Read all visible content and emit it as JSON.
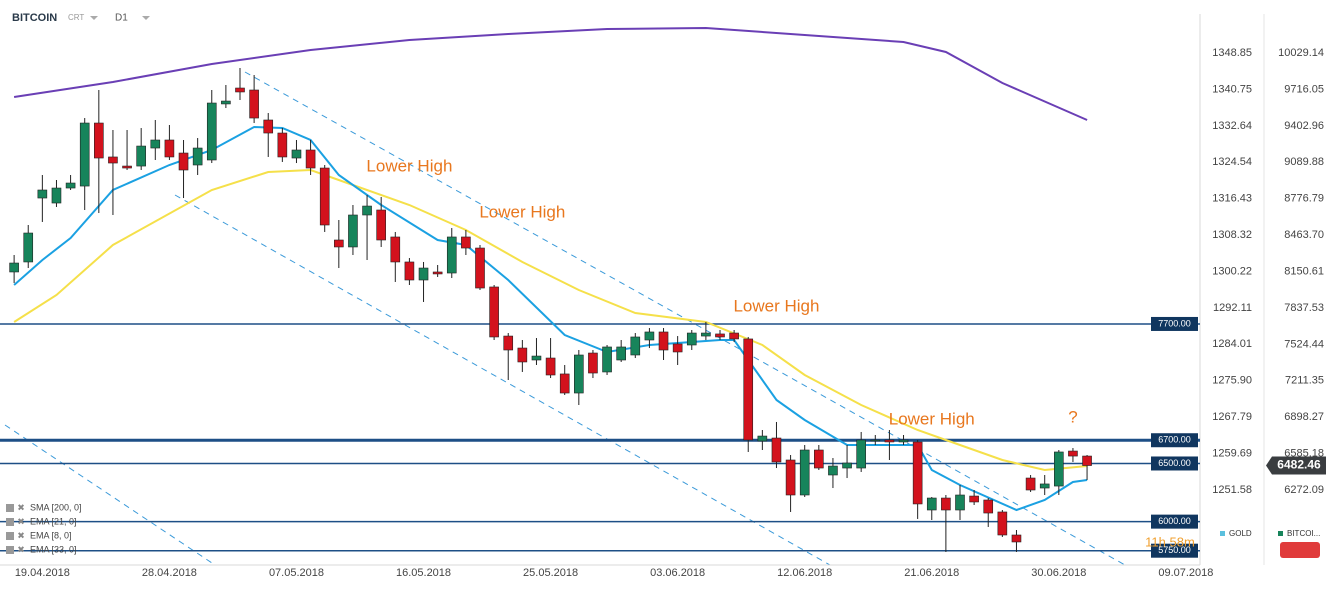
{
  "chart_data": {
    "type": "candlestick",
    "header": {
      "symbol": "BITCOIN",
      "source": "CRT",
      "timeframe": "D1"
    },
    "xlim": [
      "16.04.2018",
      "10.07.2018"
    ],
    "xticks": [
      "19.04.2018",
      "28.04.2018",
      "07.05.2018",
      "16.05.2018",
      "25.05.2018",
      "03.06.2018",
      "12.06.2018",
      "21.06.2018",
      "30.06.2018",
      "09.07.2018"
    ],
    "ylim": [
      5627,
      10486
    ],
    "yticks": [
      10029.14,
      9716.05,
      9402.96,
      9089.88,
      8776.79,
      {
        "value": 8463.7,
        "label": "8463.70"
      },
      8150.61,
      7837.53,
      7524.44,
      7211.35,
      6898.27,
      6585.18,
      6272.09
    ],
    "y2lim": [
      1234.85,
      1360.67
    ],
    "y2ticks": [
      1348.85,
      1340.75,
      1332.64,
      1324.54,
      1316.43,
      1308.32,
      1300.22,
      1292.11,
      1284.01,
      {
        "value": 1275.9,
        "label": "1275.90"
      },
      1267.79,
      1259.69,
      1251.58
    ],
    "up_color": "#17845b",
    "down_color": "#d3121d",
    "candles": {
      "x": [
        "17.04.2018",
        "18.04.2018",
        "19.04.2018",
        "20.04.2018",
        "21.04.2018",
        "22.04.2018",
        "23.04.2018",
        "24.04.2018",
        "25.04.2018",
        "26.04.2018",
        "27.04.2018",
        "28.04.2018",
        "29.04.2018",
        "30.04.2018",
        "01.05.2018",
        "02.05.2018",
        "03.05.2018",
        "04.05.2018",
        "05.05.2018",
        "06.05.2018",
        "07.05.2018",
        "08.05.2018",
        "09.05.2018",
        "10.05.2018",
        "11.05.2018",
        "12.05.2018",
        "13.05.2018",
        "14.05.2018",
        "15.05.2018",
        "16.05.2018",
        "17.05.2018",
        "18.05.2018",
        "19.05.2018",
        "20.05.2018",
        "21.05.2018",
        "22.05.2018",
        "23.05.2018",
        "24.05.2018",
        "25.05.2018",
        "26.05.2018",
        "27.05.2018",
        "28.05.2018",
        "29.05.2018",
        "30.05.2018",
        "31.05.2018",
        "01.06.2018",
        "02.06.2018",
        "03.06.2018",
        "04.06.2018",
        "05.06.2018",
        "06.06.2018",
        "07.06.2018",
        "08.06.2018",
        "09.06.2018",
        "10.06.2018",
        "11.06.2018",
        "12.06.2018",
        "13.06.2018",
        "14.06.2018",
        "15.06.2018",
        "16.06.2018",
        "17.06.2018",
        "18.06.2018",
        "19.06.2018",
        "20.06.2018",
        "21.06.2018",
        "22.06.2018",
        "23.06.2018",
        "24.06.2018",
        "25.06.2018",
        "26.06.2018",
        "27.06.2018",
        "28.06.2018",
        "29.06.2018",
        "30.06.2018",
        "01.07.2018",
        "02.07.2018"
      ],
      "open": [
        8147,
        8233,
        8783,
        8740,
        8869,
        8886,
        9428,
        9136,
        9058,
        9058,
        9213,
        9282,
        9170,
        9067,
        9110,
        9592,
        9729,
        9712,
        9454,
        9342,
        9127,
        9196,
        9041,
        8422,
        8362,
        8637,
        8680,
        8448,
        8233,
        8078,
        8147,
        8138,
        8448,
        8353,
        8018,
        7596,
        7493,
        7390,
        7407,
        7270,
        7106,
        7450,
        7287,
        7390,
        7433,
        7562,
        7631,
        7528,
        7519,
        7596,
        7614,
        7622,
        7571,
        6693,
        6719,
        6530,
        6229,
        6616,
        6401,
        6461,
        6461,
        6693,
        6702,
        6685,
        6685,
        6100,
        6203,
        6100,
        6220,
        6186,
        6083,
        5885,
        6375,
        6289,
        6306,
        6607,
        6564
      ],
      "high": [
        8293,
        8551,
        8981,
        8938,
        8981,
        9471,
        9712,
        9368,
        9368,
        9385,
        9454,
        9411,
        9282,
        9299,
        9712,
        9755,
        9901,
        9841,
        9514,
        9385,
        9282,
        9282,
        9067,
        8594,
        8723,
        8809,
        8792,
        8491,
        8267,
        8233,
        8207,
        8525,
        8508,
        8379,
        8035,
        7622,
        7562,
        7579,
        7579,
        7347,
        7476,
        7476,
        7519,
        7562,
        7622,
        7665,
        7665,
        7596,
        7648,
        7717,
        7648,
        7648,
        7588,
        6788,
        6857,
        6573,
        6659,
        6659,
        6547,
        6659,
        6771,
        6745,
        6788,
        6745,
        6702,
        6212,
        6229,
        6315,
        6272,
        6203,
        6100,
        5928,
        6401,
        6401,
        6616,
        6633,
        6573
      ],
      "low": [
        8052,
        8181,
        8577,
        8706,
        8852,
        8680,
        8654,
        8637,
        9024,
        9024,
        9110,
        9110,
        8783,
        8981,
        9084,
        9557,
        9626,
        9428,
        9136,
        9093,
        9084,
        8981,
        8491,
        8181,
        8293,
        8250,
        8362,
        8061,
        8035,
        7889,
        8104,
        8095,
        8293,
        7992,
        7562,
        7218,
        7287,
        7347,
        7235,
        7089,
        7003,
        7235,
        7261,
        7373,
        7407,
        7493,
        7390,
        7347,
        7476,
        7562,
        7562,
        7545,
        6599,
        6616,
        6461,
        6083,
        6212,
        6444,
        6289,
        6375,
        6427,
        6659,
        6530,
        6659,
        6023,
        6014,
        5739,
        6014,
        6143,
        5954,
        5868,
        5739,
        6255,
        6229,
        6229,
        6513,
        6358
      ],
      "close": [
        8224,
        8482,
        8852,
        8869,
        8912,
        9428,
        9127,
        9084,
        9041,
        9230,
        9282,
        9136,
        9024,
        9213,
        9600,
        9617,
        9695,
        9471,
        9342,
        9136,
        9196,
        9041,
        8551,
        8362,
        8637,
        8714,
        8422,
        8233,
        8078,
        8181,
        8130,
        8448,
        8353,
        8009,
        7588,
        7476,
        7373,
        7424,
        7261,
        7106,
        7433,
        7278,
        7502,
        7502,
        7588,
        7631,
        7476,
        7459,
        7622,
        7622,
        7588,
        7571,
        6702,
        6736,
        6513,
        6229,
        6616,
        6461,
        6478,
        6504,
        6702,
        6702,
        6685,
        6702,
        6152,
        6203,
        6100,
        6229,
        6169,
        6074,
        5885,
        5825,
        6272,
        6324,
        6599,
        6564,
        6482.46
      ]
    },
    "indicators": [
      {
        "name": "SMA [200, 0]",
        "color": "#6a3fb5",
        "x": [
          "17.04.2018",
          "24.04.2018",
          "01.05.2018",
          "08.05.2018",
          "15.05.2018",
          "22.05.2018",
          "29.05.2018",
          "05.06.2018",
          "12.06.2018",
          "19.06.2018",
          "22.06.2018",
          "26.06.2018",
          "02.07.2018"
        ],
        "values": [
          9652,
          9781,
          9936,
          10056,
          10142,
          10194,
          10237,
          10245,
          10185,
          10125,
          10039,
          9772,
          9454
        ]
      },
      {
        "name": "EMA [21, 0]",
        "color": "#f5e04a",
        "x": [
          "17.04.2018",
          "20.04.2018",
          "24.04.2018",
          "01.05.2018",
          "05.05.2018",
          "08.05.2018",
          "11.05.2018",
          "15.05.2018",
          "19.05.2018",
          "23.05.2018",
          "27.05.2018",
          "31.05.2018",
          "05.06.2018",
          "09.06.2018",
          "12.06.2018",
          "16.06.2018",
          "20.06.2018",
          "23.06.2018",
          "26.06.2018",
          "29.06.2018",
          "02.07.2018"
        ],
        "values": [
          7717,
          7949,
          8379,
          8852,
          9007,
          9024,
          8895,
          8723,
          8508,
          8233,
          7992,
          7794,
          7717,
          7519,
          7261,
          7003,
          6788,
          6659,
          6530,
          6444,
          6478
        ]
      },
      {
        "name": "EMA [8, 0]",
        "color": "#1ba1e2",
        "x": [
          "17.04.2018",
          "19.04.2018",
          "21.04.2018",
          "24.04.2018",
          "28.04.2018",
          "01.05.2018",
          "04.05.2018",
          "06.05.2018",
          "08.05.2018",
          "10.05.2018",
          "13.05.2018",
          "17.05.2018",
          "19.05.2018",
          "22.05.2018",
          "26.05.2018",
          "29.05.2018",
          "01.06.2018",
          "06.06.2018",
          "07.06.2018",
          "10.06.2018",
          "12.06.2018",
          "15.06.2018",
          "20.06.2018",
          "21.06.2018",
          "23.06.2018",
          "27.06.2018",
          "29.06.2018",
          "01.07.2018",
          "02.07.2018"
        ],
        "values": [
          8035,
          8250,
          8439,
          8852,
          9067,
          9196,
          9394,
          9385,
          9282,
          8981,
          8723,
          8422,
          8379,
          8078,
          7605,
          7459,
          7519,
          7562,
          7562,
          7046,
          6874,
          6659,
          6659,
          6444,
          6315,
          6100,
          6186,
          6341,
          6358
        ]
      },
      {
        "name": "EMA [33, 0]"
      }
    ],
    "levels": [
      {
        "value": 7700,
        "label": "7700.00"
      },
      {
        "value": 6700,
        "label": "6700.00",
        "weight": "bold"
      },
      {
        "value": 6500,
        "label": "6500.00"
      },
      {
        "value": 6000,
        "label": "6000.00"
      },
      {
        "value": 5750,
        "label": "5750.00"
      }
    ],
    "last_price": 6482.46,
    "annotations": [
      {
        "text": "Lower High",
        "x": "15.05.2018",
        "y": 9050
      },
      {
        "text": "Lower High",
        "x": "23.05.2018",
        "y": 8654
      },
      {
        "text": "Lower High",
        "x": "10.06.2018",
        "y": 7846
      },
      {
        "text": "Lower High",
        "x": "21.06.2018",
        "y": 6874
      },
      {
        "text": "?",
        "x": "01.07.2018",
        "y": 6891
      }
    ],
    "countdown": "11h 58m",
    "instruments": [
      {
        "name": "GOLD",
        "color": "#5bc0de"
      },
      {
        "name": "BITCOI...",
        "color": "#17845b"
      }
    ]
  }
}
